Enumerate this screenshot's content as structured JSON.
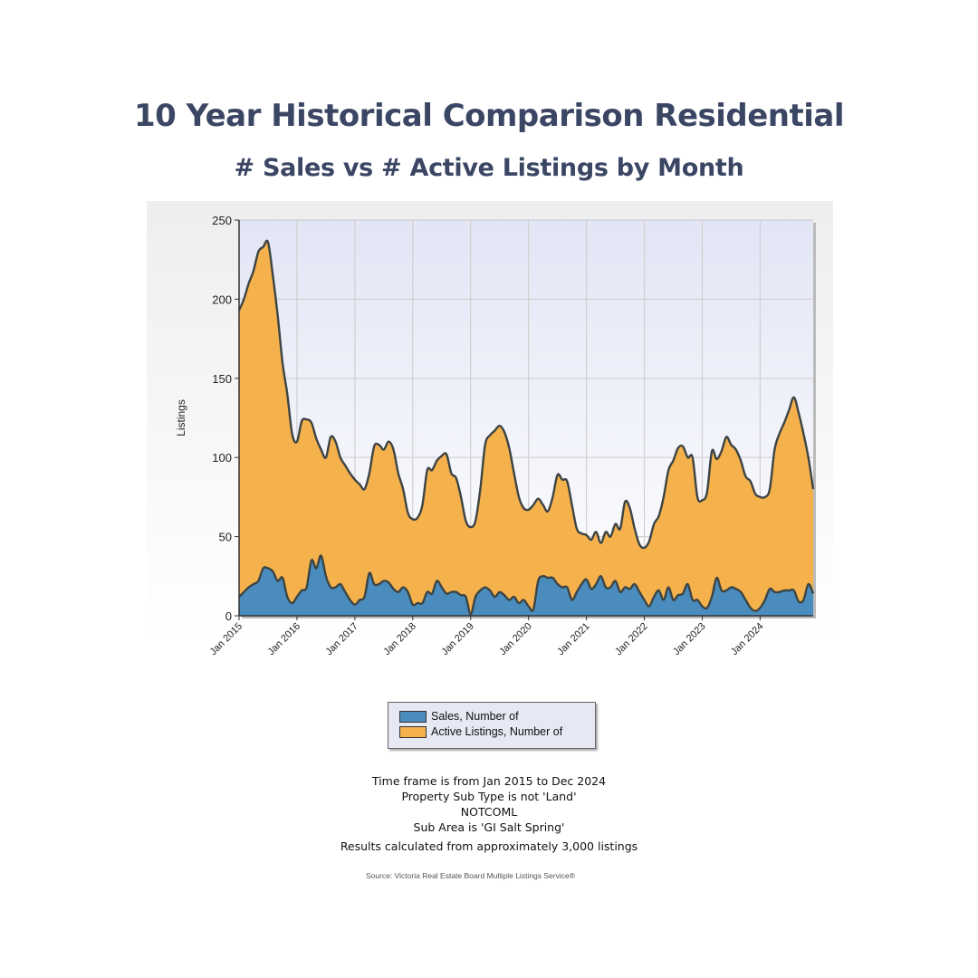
{
  "title": "10 Year Historical Comparison Residential",
  "subtitle": "# Sales vs # Active Listings by Month",
  "chart_data": {
    "type": "area",
    "ylabel": "Listings",
    "xlabel": "",
    "ylim": [
      0,
      250
    ],
    "yticks": [
      0,
      50,
      100,
      150,
      200,
      250
    ],
    "xtick_labels": [
      "Jan 2015",
      "Jan 2016",
      "Jan 2017",
      "Jan 2018",
      "Jan 2019",
      "Jan 2020",
      "Jan 2021",
      "Jan 2022",
      "Jan 2023",
      "Jan 2024"
    ],
    "grid": true,
    "legend_position": "bottom",
    "x_start": "Jan 2015",
    "x_end": "Dec 2024",
    "series": [
      {
        "name": "Active Listings, Number of",
        "color": "#f5b24c",
        "values": [
          193,
          200,
          210,
          218,
          230,
          233,
          236,
          215,
          190,
          160,
          140,
          115,
          110,
          123,
          124,
          122,
          112,
          105,
          100,
          113,
          110,
          100,
          95,
          90,
          86,
          83,
          80,
          90,
          107,
          108,
          105,
          110,
          105,
          90,
          80,
          65,
          61,
          62,
          70,
          92,
          92,
          98,
          101,
          102,
          90,
          87,
          75,
          60,
          56,
          60,
          80,
          108,
          114,
          117,
          120,
          116,
          106,
          90,
          75,
          68,
          67,
          70,
          74,
          70,
          66,
          75,
          89,
          86,
          85,
          70,
          55,
          52,
          51,
          48,
          53,
          46,
          53,
          50,
          58,
          55,
          72,
          68,
          55,
          45,
          43,
          47,
          58,
          63,
          75,
          92,
          98,
          106,
          107,
          100,
          100,
          75,
          73,
          78,
          104,
          99,
          104,
          113,
          108,
          105,
          98,
          88,
          85,
          77,
          75,
          75,
          80,
          105,
          115,
          122,
          130,
          138,
          128,
          115,
          100,
          80
        ]
      },
      {
        "name": "Sales, Number of",
        "color": "#4a8cbd",
        "values": [
          12,
          15,
          18,
          20,
          22,
          30,
          30,
          28,
          22,
          24,
          12,
          8,
          12,
          16,
          18,
          35,
          30,
          38,
          25,
          18,
          18,
          20,
          15,
          10,
          7,
          10,
          12,
          27,
          20,
          20,
          22,
          21,
          17,
          15,
          18,
          15,
          7,
          8,
          8,
          15,
          14,
          22,
          18,
          14,
          15,
          15,
          13,
          12,
          1,
          12,
          16,
          18,
          16,
          12,
          15,
          13,
          10,
          12,
          8,
          10,
          6,
          4,
          22,
          25,
          24,
          24,
          20,
          18,
          18,
          10,
          15,
          20,
          23,
          17,
          20,
          25,
          18,
          18,
          22,
          15,
          18,
          17,
          20,
          15,
          10,
          6,
          12,
          16,
          10,
          18,
          10,
          13,
          14,
          20,
          10,
          10,
          6,
          5,
          12,
          24,
          16,
          16,
          18,
          17,
          15,
          10,
          5,
          3,
          5,
          10,
          17,
          15,
          15,
          16,
          16,
          16,
          9,
          10,
          20,
          14
        ]
      }
    ]
  },
  "legend": {
    "sales": "Sales, Number of",
    "active": "Active Listings, Number of"
  },
  "notes": [
    "Time frame is from Jan 2015 to Dec 2024",
    "Property Sub Type is not 'Land'",
    "NOTCOML",
    "Sub Area is 'GI Salt Spring'",
    "Results calculated from approximately 3,000 listings"
  ],
  "source": "Source: Victoria Real Estate Board Multiple Listings Service®"
}
